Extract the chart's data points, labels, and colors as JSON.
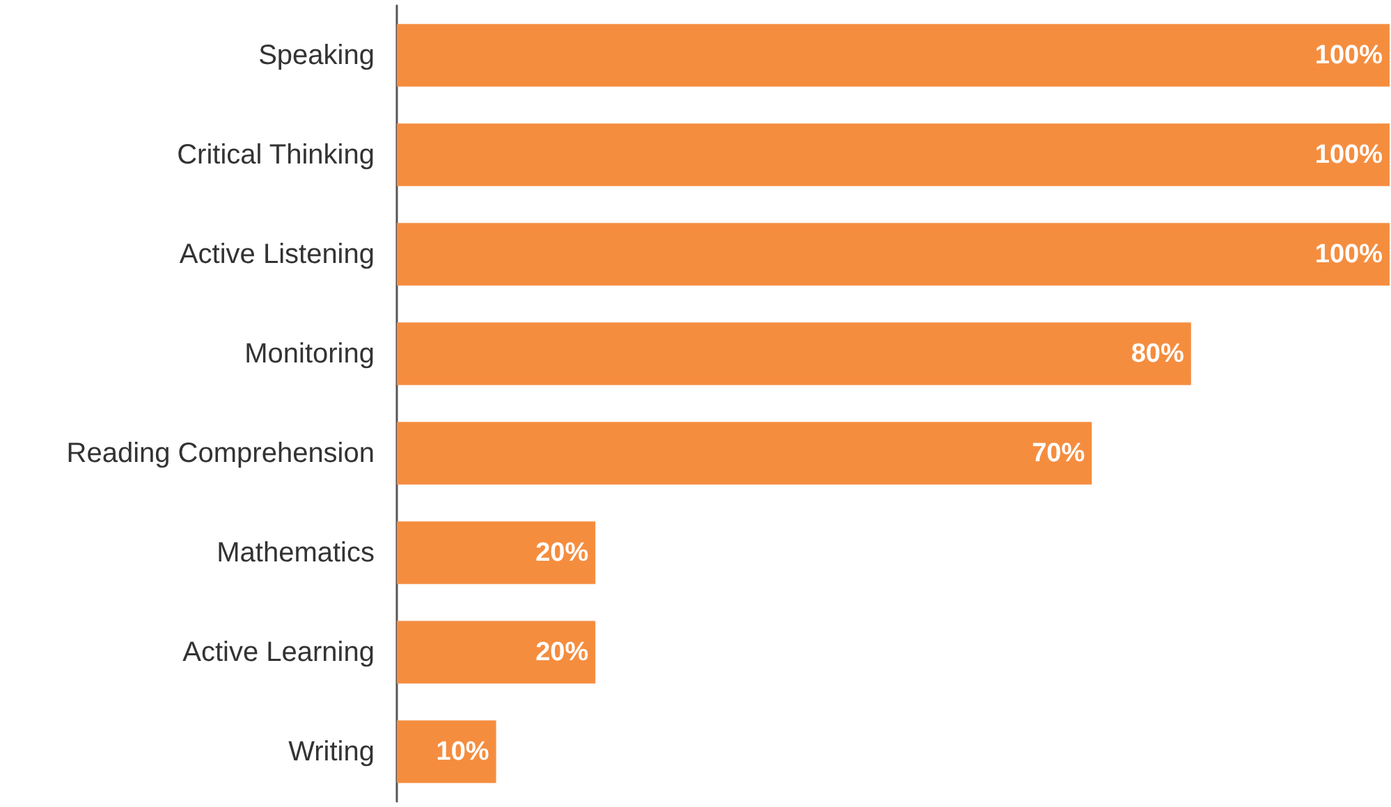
{
  "chart_data": {
    "type": "bar",
    "orientation": "horizontal",
    "categories": [
      "Speaking",
      "Critical Thinking",
      "Active Listening",
      "Monitoring",
      "Reading Comprehension",
      "Mathematics",
      "Active Learning",
      "Writing"
    ],
    "values": [
      100,
      100,
      100,
      80,
      70,
      20,
      20,
      10
    ],
    "value_labels": [
      "100%",
      "100%",
      "100%",
      "80%",
      "70%",
      "20%",
      "20%",
      "10%"
    ],
    "color": "#f58d3f"
  }
}
